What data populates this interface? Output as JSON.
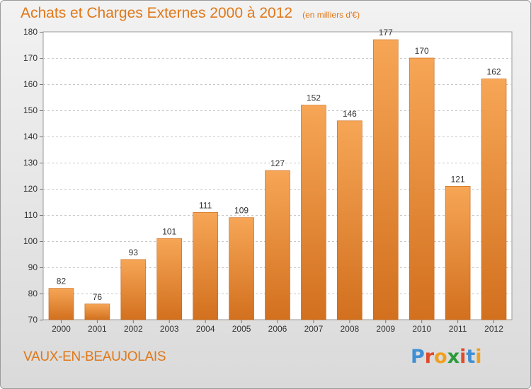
{
  "chart_data": {
    "type": "bar",
    "title": "Achats et Charges Externes 2000 à 2012",
    "subtitle": "(en milliers d'€)",
    "categories": [
      "2000",
      "2001",
      "2002",
      "2003",
      "2004",
      "2005",
      "2006",
      "2007",
      "2008",
      "2009",
      "2010",
      "2011",
      "2012"
    ],
    "values": [
      82,
      76,
      93,
      101,
      111,
      109,
      127,
      152,
      146,
      177,
      170,
      121,
      162
    ],
    "ylim": [
      70,
      180
    ],
    "yticks": [
      70,
      80,
      90,
      100,
      110,
      120,
      130,
      140,
      150,
      160,
      170,
      180
    ],
    "grid": true,
    "bar_color_top": "#f6a656",
    "bar_color_bottom": "#d2701e"
  },
  "footer": {
    "city": "VAUX-EN-BEAUJOLAIS",
    "logo_letters": [
      "P",
      "r",
      "o",
      "x",
      "i",
      "t",
      "i"
    ],
    "logo_colors": [
      "#3f8fd6",
      "#e04a2a",
      "#f0a020",
      "#2c9a3a",
      "#e04a2a",
      "#3f8fd6",
      "#f0a020"
    ]
  }
}
